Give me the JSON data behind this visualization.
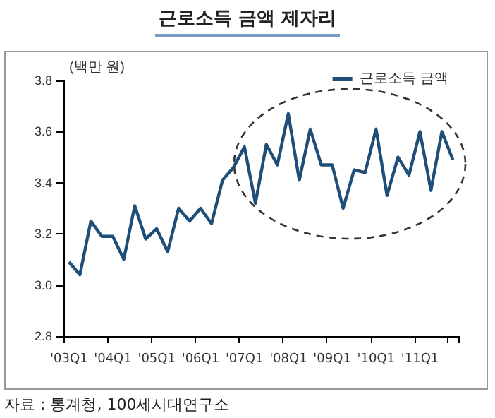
{
  "chart_data": {
    "type": "line",
    "title": "근로소득 금액 제자리",
    "ylabel": "(백만 원)",
    "annotations": [
      "자료 : 통계청, 100세시대연구소"
    ],
    "categories": [
      "'03Q1",
      null,
      null,
      null,
      "'04Q1",
      null,
      null,
      null,
      "'05Q1",
      null,
      null,
      null,
      "'06Q1",
      null,
      null,
      null,
      "'07Q1",
      null,
      null,
      null,
      "'08Q1",
      null,
      null,
      null,
      "'09Q1",
      null,
      null,
      null,
      "'10Q1",
      null,
      null,
      null,
      "'11Q1",
      null,
      null,
      null
    ],
    "series": [
      {
        "name": "근로소득 금액",
        "color": "#1f4e79",
        "values": [
          3.09,
          3.04,
          3.25,
          3.19,
          3.19,
          3.1,
          3.31,
          3.18,
          3.22,
          3.13,
          3.3,
          3.25,
          3.3,
          3.24,
          3.41,
          3.46,
          3.54,
          3.32,
          3.55,
          3.47,
          3.67,
          3.41,
          3.61,
          3.47,
          3.47,
          3.3,
          3.45,
          3.44,
          3.61,
          3.35,
          3.5,
          3.43,
          3.6,
          3.37,
          3.6,
          3.49
        ]
      }
    ],
    "ylim": [
      2.8,
      3.8
    ],
    "yticks": [
      2.8,
      {
        "value": 3,
        "label": "3.0"
      },
      3.2,
      3.4,
      3.6,
      3.8
    ],
    "grid": false,
    "legend": "top right",
    "marker": "none",
    "line_style": "solid"
  }
}
